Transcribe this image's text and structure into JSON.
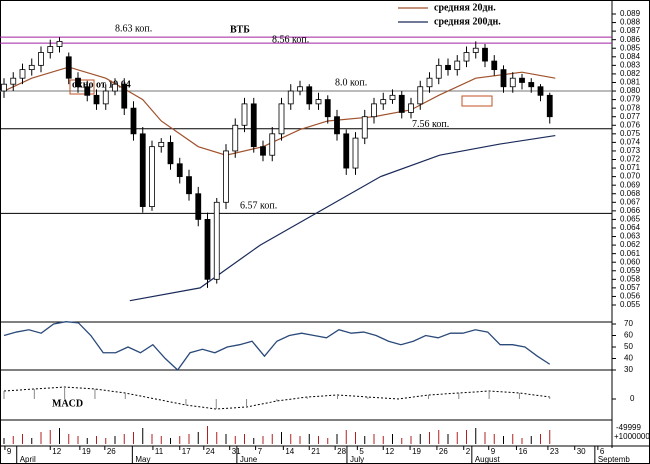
{
  "chart_data": {
    "type": "candlestick",
    "title": "ВТБ",
    "legend": [
      {
        "name": "средняя 20дн.",
        "color": "#a0522d"
      },
      {
        "name": "средняя 200дн.",
        "color": "#1a2a5a"
      }
    ],
    "candles": {
      "open": [
        0.08,
        0.0808,
        0.0815,
        0.0825,
        0.083,
        0.0845,
        0.0852,
        0.084,
        0.0815,
        0.0805,
        0.0795,
        0.0785,
        0.08,
        0.0808,
        0.078,
        0.075,
        0.0665,
        0.0735,
        0.074,
        0.0715,
        0.07,
        0.068,
        0.065,
        0.058,
        0.067,
        0.073,
        0.076,
        0.0785,
        0.0735,
        0.0725,
        0.075,
        0.0785,
        0.08,
        0.0805,
        0.0785,
        0.079,
        0.077,
        0.075,
        0.071,
        0.0745,
        0.077,
        0.0785,
        0.079,
        0.0795,
        0.0775,
        0.0785,
        0.0805,
        0.0815,
        0.083,
        0.0825,
        0.0835,
        0.0845,
        0.085,
        0.0835,
        0.0825,
        0.0805,
        0.0815,
        0.081,
        0.0805,
        0.0795
      ],
      "high": [
        0.0815,
        0.0822,
        0.0832,
        0.0838,
        0.0852,
        0.086,
        0.0863,
        0.0845,
        0.0822,
        0.0812,
        0.0802,
        0.0808,
        0.0815,
        0.0815,
        0.0788,
        0.0758,
        0.0742,
        0.0745,
        0.0748,
        0.0722,
        0.0708,
        0.0688,
        0.0658,
        0.0675,
        0.0738,
        0.0768,
        0.0792,
        0.0792,
        0.0742,
        0.0758,
        0.0792,
        0.0808,
        0.0812,
        0.0808,
        0.0798,
        0.0795,
        0.0778,
        0.0755,
        0.0752,
        0.0778,
        0.0792,
        0.0798,
        0.0802,
        0.08,
        0.0792,
        0.0812,
        0.0822,
        0.0838,
        0.0838,
        0.0842,
        0.0852,
        0.0858,
        0.0855,
        0.0842,
        0.083,
        0.0822,
        0.082,
        0.0815,
        0.0808,
        0.0798
      ],
      "low": [
        0.0792,
        0.08,
        0.0808,
        0.0818,
        0.0822,
        0.0838,
        0.0845,
        0.0808,
        0.0798,
        0.0788,
        0.0778,
        0.0778,
        0.0795,
        0.0772,
        0.0742,
        0.0658,
        0.066,
        0.0728,
        0.0708,
        0.0692,
        0.0672,
        0.0642,
        0.057,
        0.0575,
        0.0662,
        0.0722,
        0.0752,
        0.0728,
        0.0718,
        0.0718,
        0.0742,
        0.0778,
        0.0795,
        0.0778,
        0.0778,
        0.0762,
        0.0742,
        0.0702,
        0.0702,
        0.0738,
        0.0762,
        0.0778,
        0.0785,
        0.0768,
        0.0768,
        0.0778,
        0.0798,
        0.0808,
        0.0818,
        0.0818,
        0.0828,
        0.0838,
        0.0828,
        0.0818,
        0.0798,
        0.0798,
        0.0802,
        0.0798,
        0.0788,
        0.0762
      ],
      "close": [
        0.0808,
        0.0815,
        0.0825,
        0.083,
        0.0845,
        0.0852,
        0.0858,
        0.0815,
        0.0805,
        0.0795,
        0.0785,
        0.08,
        0.0808,
        0.078,
        0.075,
        0.0665,
        0.0735,
        0.074,
        0.0715,
        0.07,
        0.068,
        0.065,
        0.058,
        0.067,
        0.073,
        0.076,
        0.0785,
        0.0735,
        0.0725,
        0.075,
        0.0785,
        0.08,
        0.0805,
        0.0785,
        0.079,
        0.077,
        0.075,
        0.071,
        0.0745,
        0.077,
        0.0785,
        0.079,
        0.0795,
        0.0775,
        0.0785,
        0.0805,
        0.0815,
        0.083,
        0.0825,
        0.0835,
        0.0845,
        0.085,
        0.0835,
        0.0825,
        0.0805,
        0.0815,
        0.081,
        0.0805,
        0.0795,
        0.077
      ]
    },
    "ma20": {
      "x": [
        0,
        3,
        7,
        11,
        15,
        17,
        21,
        24,
        28,
        32,
        35,
        40,
        44,
        47,
        51,
        56,
        59.6
      ],
      "values": [
        0.08,
        0.0815,
        0.0828,
        0.0815,
        0.079,
        0.0765,
        0.0735,
        0.0725,
        0.0735,
        0.0755,
        0.0765,
        0.077,
        0.0778,
        0.0795,
        0.0815,
        0.0822,
        0.0815
      ]
    },
    "ma200": {
      "x": [
        13.6,
        21.2,
        27.7,
        34.2,
        40.7,
        47.1,
        53.6,
        59.6
      ],
      "values": [
        0.0555,
        0.057,
        0.062,
        0.066,
        0.07,
        0.0725,
        0.0738,
        0.0748
      ]
    },
    "ylim": [
      0.0545,
      0.0895
    ],
    "yticks": [
      0.089,
      0.088,
      0.087,
      0.086,
      0.085,
      0.084,
      0.083,
      0.082,
      0.081,
      {
        "value": 0.08,
        "label": "0.080"
      },
      0.079,
      0.078,
      0.077,
      0.076,
      0.075,
      0.074,
      0.073,
      0.072,
      0.071,
      {
        "value": 0.07,
        "label": "0.070"
      },
      0.069,
      0.068,
      0.067,
      0.066,
      0.065,
      0.064,
      0.063,
      0.062,
      0.061,
      {
        "value": 0.06,
        "label": "0.060"
      },
      0.059,
      0.058,
      0.057,
      0.056,
      0.055
    ],
    "levels": [
      {
        "value": 0.0863,
        "color": "#a020a0",
        "label": "8.63 коп."
      },
      {
        "value": 0.0856,
        "color": "#a020a0",
        "label": "8.56 коп."
      },
      {
        "value": 0.08,
        "color": "#777777",
        "label": "8.0 коп."
      },
      {
        "value": 0.0756,
        "color": "#000000",
        "label": "7.56 коп."
      },
      {
        "value": 0.0657,
        "color": "#000000",
        "label": "6.57 коп."
      }
    ],
    "annotation": "окно от 19.04",
    "oscillator": {
      "ylim": [
        28,
        72
      ],
      "yticks": [
        70,
        60,
        50,
        40,
        30
      ],
      "values": [
        60,
        63,
        65,
        62,
        70,
        72,
        71,
        60,
        45,
        45,
        50,
        45,
        52,
        40,
        30,
        45,
        48,
        45,
        50,
        52,
        55,
        42,
        55,
        60,
        62,
        60,
        58,
        65,
        62,
        63,
        60,
        55,
        52,
        55,
        60,
        58,
        62,
        62,
        65,
        63,
        52,
        52,
        50,
        42,
        35
      ]
    },
    "macd": {
      "label": "MACD",
      "ylim": [
        -1,
        1
      ],
      "yticks": [
        0
      ],
      "values": [
        0.4,
        0.5,
        0.6,
        0.5,
        0.3,
        0.0,
        -0.3,
        -0.5,
        -0.4,
        -0.1,
        0.1,
        0.2,
        0.1,
        0.0,
        0.2,
        0.3,
        0.4,
        0.3,
        0.1
      ]
    },
    "volume": {
      "ylim": [
        0,
        10
      ],
      "tick_labels": [
        "-49999",
        "+1000000"
      ],
      "values": [
        3,
        4,
        5,
        3,
        6,
        7,
        8,
        5,
        4,
        3,
        4,
        3,
        4,
        5,
        6,
        8,
        5,
        4,
        3,
        4,
        5,
        6,
        9,
        6,
        5,
        4,
        5,
        3,
        4,
        5,
        6,
        5,
        4,
        5,
        4,
        3,
        5,
        7,
        6,
        4,
        5,
        4,
        5,
        3,
        4,
        5,
        6,
        7,
        5,
        6,
        7,
        8,
        6,
        5,
        4,
        5,
        3,
        4,
        5,
        7
      ]
    },
    "xticks": [
      {
        "value": 0.1,
        "label": "9"
      },
      {
        "value": 5,
        "label": "12"
      },
      {
        "value": 8.2,
        "label": "19"
      },
      {
        "value": 10.9,
        "label": "26"
      },
      {
        "value": 16.1,
        "label": "11"
      },
      {
        "value": 19,
        "label": "17"
      },
      {
        "value": 21.6,
        "label": "24"
      },
      {
        "value": 24.4,
        "label": "31"
      },
      {
        "value": 27.2,
        "label": "7"
      },
      {
        "value": 30.2,
        "label": "14"
      },
      {
        "value": 33,
        "label": "21"
      },
      {
        "value": 35.8,
        "label": "28"
      },
      {
        "value": 38.2,
        "label": "5"
      },
      {
        "value": 41,
        "label": "12"
      },
      {
        "value": 43.9,
        "label": "19"
      },
      {
        "value": 46.8,
        "label": "26"
      },
      {
        "value": 49.7,
        "label": "2"
      },
      {
        "value": 52.4,
        "label": "9"
      },
      {
        "value": 55.4,
        "label": "16"
      },
      {
        "value": 58.8,
        "label": "23"
      },
      {
        "value": 61.7,
        "label": "30"
      },
      {
        "value": 64.2,
        "label": "6"
      }
    ],
    "months": [
      {
        "value": 1.7,
        "label": "April"
      },
      {
        "value": 14.2,
        "label": "May"
      },
      {
        "value": 25.5,
        "label": "June"
      },
      {
        "value": 37.4,
        "label": "July"
      },
      {
        "value": 50.9,
        "label": "August"
      },
      {
        "value": 64.2,
        "label": "Septemb"
      }
    ]
  }
}
